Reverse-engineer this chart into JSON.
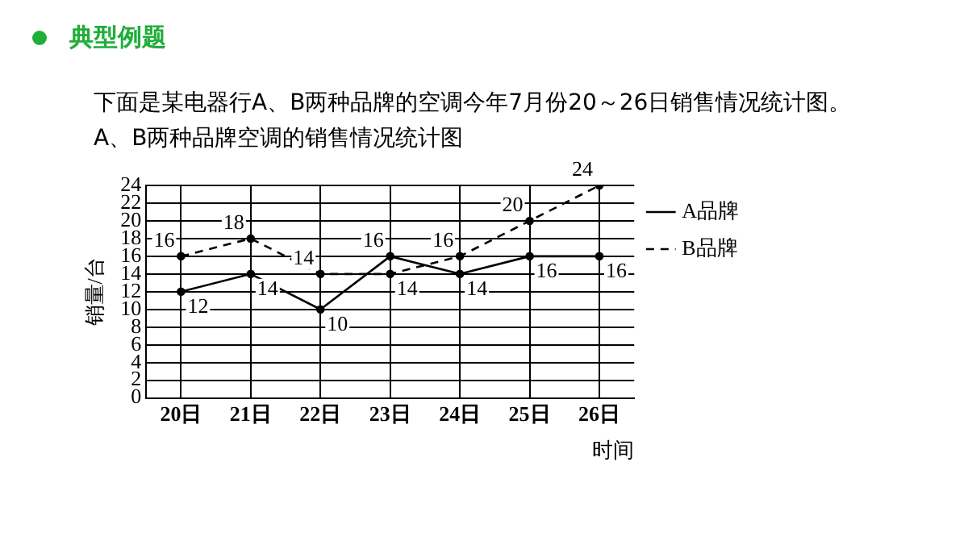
{
  "chart_data": {
    "type": "line",
    "title": "下面是某电器行A、B两种品牌的空调今年7月份20～26日销售情况统计图。",
    "subtitle": "A、B两种品牌空调的销售情况统计图",
    "annotations": [
      "典型例题"
    ],
    "xlabel": "时间",
    "ylabel": "销量/台",
    "categories": [
      "20日",
      "21日",
      "22日",
      "23日",
      "24日",
      "25日",
      "26日"
    ],
    "series": [
      {
        "name": "A品牌",
        "color": "#000000",
        "line_style": "solid",
        "values": [
          12,
          14,
          10,
          16,
          14,
          16,
          16
        ]
      },
      {
        "name": "B品牌",
        "color": "#000000",
        "line_style": "dashed",
        "values": [
          16,
          18,
          14,
          14,
          16,
          20,
          24
        ]
      }
    ],
    "ylim": [
      0,
      24
    ],
    "yticks": [
      0,
      2,
      4,
      6,
      8,
      10,
      12,
      14,
      16,
      18,
      20,
      22,
      24
    ],
    "grid": true,
    "legend": "top right",
    "marker": "circle",
    "data_labels": true
  }
}
